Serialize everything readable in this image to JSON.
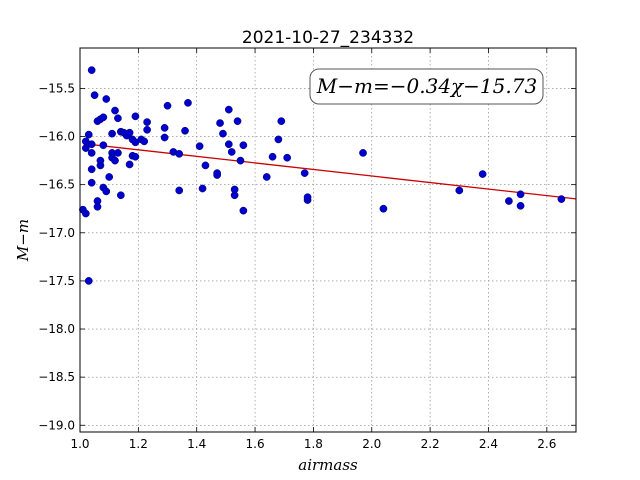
{
  "chart_data": {
    "type": "scatter",
    "title": "2021-10-27_234332",
    "xlabel": "airmass",
    "ylabel": "M−m",
    "xlim": [
      1.0,
      2.7
    ],
    "ylim": [
      -19.07,
      -15.08
    ],
    "y_inverted": false,
    "grid": true,
    "xticks": [
      1.0,
      1.2,
      1.4,
      1.6,
      1.8,
      2.0,
      2.2,
      2.4,
      2.6
    ],
    "xtick_labels": [
      "1.0",
      "1.2",
      "1.4",
      "1.6",
      "1.8",
      "2.0",
      "2.2",
      "2.4",
      "2.6"
    ],
    "yticks": [
      -15.5,
      -16.0,
      -16.5,
      -17.0,
      -17.5,
      -18.0,
      -18.5,
      -19.0
    ],
    "ytick_labels": [
      "−15.5",
      "−16.0",
      "−16.5",
      "−17.0",
      "−17.5",
      "−18.0",
      "−18.5",
      "−19.0"
    ],
    "annotation": "M−m=−0.34χ−15.73",
    "colors": {
      "points": "#0000cc",
      "fit_line": "#cc0000",
      "frame": "#000000"
    },
    "fit": {
      "slope": -0.34,
      "intercept": -15.73
    },
    "points": [
      [
        1.01,
        -16.76
      ],
      [
        1.02,
        -16.05
      ],
      [
        1.02,
        -16.12
      ],
      [
        1.02,
        -16.8
      ],
      [
        1.03,
        -17.5
      ],
      [
        1.03,
        -15.98
      ],
      [
        1.04,
        -16.08
      ],
      [
        1.04,
        -16.17
      ],
      [
        1.04,
        -16.34
      ],
      [
        1.04,
        -16.48
      ],
      [
        1.04,
        -15.31
      ],
      [
        1.05,
        -15.57
      ],
      [
        1.06,
        -15.84
      ],
      [
        1.06,
        -16.67
      ],
      [
        1.06,
        -16.73
      ],
      [
        1.07,
        -16.3
      ],
      [
        1.07,
        -16.25
      ],
      [
        1.07,
        -15.82
      ],
      [
        1.08,
        -15.8
      ],
      [
        1.08,
        -16.09
      ],
      [
        1.08,
        -16.53
      ],
      [
        1.09,
        -15.61
      ],
      [
        1.09,
        -16.57
      ],
      [
        1.1,
        -16.42
      ],
      [
        1.11,
        -15.97
      ],
      [
        1.11,
        -16.17
      ],
      [
        1.11,
        -16.22
      ],
      [
        1.12,
        -16.25
      ],
      [
        1.12,
        -15.73
      ],
      [
        1.13,
        -15.81
      ],
      [
        1.13,
        -16.17
      ],
      [
        1.14,
        -16.61
      ],
      [
        1.14,
        -15.95
      ],
      [
        1.15,
        -15.96
      ],
      [
        1.16,
        -15.99
      ],
      [
        1.17,
        -15.96
      ],
      [
        1.17,
        -16.29
      ],
      [
        1.18,
        -16.03
      ],
      [
        1.18,
        -16.2
      ],
      [
        1.19,
        -15.79
      ],
      [
        1.19,
        -16.06
      ],
      [
        1.19,
        -16.21
      ],
      [
        1.21,
        -16.03
      ],
      [
        1.22,
        -16.05
      ],
      [
        1.23,
        -15.85
      ],
      [
        1.23,
        -15.93
      ],
      [
        1.29,
        -16.01
      ],
      [
        1.29,
        -15.91
      ],
      [
        1.3,
        -15.68
      ],
      [
        1.32,
        -16.16
      ],
      [
        1.34,
        -16.56
      ],
      [
        1.34,
        -16.18
      ],
      [
        1.36,
        -15.94
      ],
      [
        1.37,
        -15.65
      ],
      [
        1.41,
        -16.1
      ],
      [
        1.42,
        -16.54
      ],
      [
        1.43,
        -16.3
      ],
      [
        1.47,
        -16.38
      ],
      [
        1.47,
        -16.4
      ],
      [
        1.48,
        -15.86
      ],
      [
        1.49,
        -15.97
      ],
      [
        1.51,
        -15.72
      ],
      [
        1.51,
        -16.08
      ],
      [
        1.52,
        -16.16
      ],
      [
        1.53,
        -16.61
      ],
      [
        1.53,
        -16.55
      ],
      [
        1.54,
        -15.84
      ],
      [
        1.55,
        -16.25
      ],
      [
        1.56,
        -16.77
      ],
      [
        1.56,
        -16.09
      ],
      [
        1.64,
        -16.42
      ],
      [
        1.66,
        -16.21
      ],
      [
        1.68,
        -16.03
      ],
      [
        1.69,
        -15.84
      ],
      [
        1.71,
        -16.22
      ],
      [
        1.77,
        -16.38
      ],
      [
        1.78,
        -16.66
      ],
      [
        1.78,
        -16.63
      ],
      [
        1.97,
        -16.17
      ],
      [
        2.04,
        -16.75
      ],
      [
        2.3,
        -16.56
      ],
      [
        2.38,
        -16.39
      ],
      [
        2.47,
        -16.67
      ],
      [
        2.51,
        -16.6
      ],
      [
        2.51,
        -16.72
      ],
      [
        2.65,
        -16.65
      ]
    ]
  }
}
